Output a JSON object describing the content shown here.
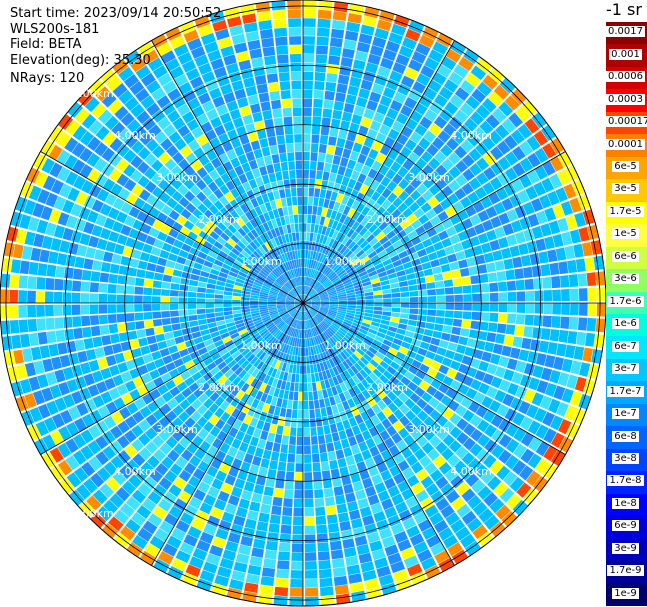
{
  "header": {
    "start_time": "Start time: 2023/09/14 20:50:52",
    "instrument": "WLS200s-181",
    "field": "Field: BETA",
    "elevation": "Elevation(deg): 35.30",
    "nrays": "NRays: 120"
  },
  "colorbar": {
    "unit_label": "-1 sr",
    "levels": [
      "0.0017",
      "0.001",
      "0.0006",
      "0.0003",
      "0.00017",
      "0.0001",
      "6e-5",
      "3e-5",
      "1.7e-5",
      "1e-5",
      "6e-6",
      "3e-6",
      "1.7e-6",
      "1e-6",
      "6e-7",
      "3e-7",
      "1.7e-7",
      "1e-7",
      "6e-8",
      "3e-8",
      "1.7e-8",
      "1e-8",
      "6e-9",
      "3e-9",
      "1.7e-9",
      "1e-9"
    ],
    "colors": [
      "#8b0000",
      "#b00000",
      "#d40000",
      "#ff0000",
      "#ff4500",
      "#ff7f00",
      "#ffa500",
      "#ffc800",
      "#ffff00",
      "#ffff40",
      "#d0ff40",
      "#90ff60",
      "#40ffb0",
      "#00ffe0",
      "#00e8ff",
      "#00c8ff",
      "#00a8ff",
      "#0088ff",
      "#0066ff",
      "#0044ff",
      "#0022ff",
      "#0000ff",
      "#0000dd",
      "#0000bb",
      "#000099",
      "#000070"
    ]
  },
  "chart_data": {
    "type": "heatmap",
    "projection": "polar-ppi",
    "title": "",
    "rays": 120,
    "range_rings_km": [
      1,
      2,
      3,
      4,
      5
    ],
    "range_labels": [
      "1.00km",
      "2.00km",
      "3.00km",
      "4.00km",
      "5.00km"
    ],
    "max_range_km": 5.1,
    "spokes_deg": [
      0,
      30,
      60,
      90,
      120,
      150,
      180,
      210,
      240,
      270,
      300,
      330
    ],
    "grid": true,
    "dominant_colors": [
      "#1e90ff",
      "#00bfff",
      "#40e0ff",
      "#ffff00",
      "#ff8c00",
      "#ff4500"
    ],
    "high_backscatter_ring_km": [
      4.8,
      5.1
    ],
    "color_scale": "log",
    "value_range": [
      1e-09,
      0.0017
    ]
  }
}
